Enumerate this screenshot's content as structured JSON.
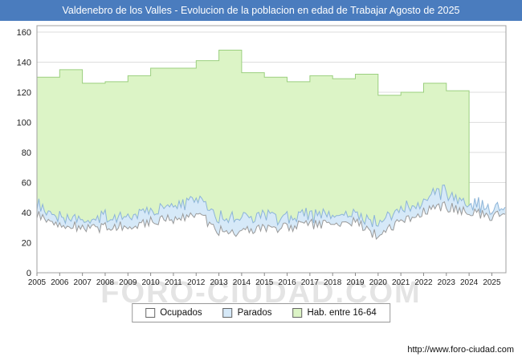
{
  "header": {
    "title": "Valdenebro de los Valles - Evolucion de la poblacion en edad de Trabajar Agosto de 2025",
    "bg_color": "#4a7cbe"
  },
  "footer": {
    "url": "http://www.foro-ciudad.com",
    "watermark": "FORO-CIUDAD.COM"
  },
  "chart_data": {
    "type": "area",
    "title": "Valdenebro de los Valles - Evolucion de la poblacion en edad de Trabajar Agosto de 2025",
    "xlabel": "",
    "ylabel": "",
    "ylim": [
      0,
      160
    ],
    "y_ticks": [
      0,
      20,
      40,
      60,
      80,
      100,
      120,
      140,
      160
    ],
    "x_tick_years": [
      2005,
      2006,
      2007,
      2008,
      2009,
      2010,
      2011,
      2012,
      2013,
      2014,
      2015,
      2016,
      2017,
      2018,
      2019,
      2020,
      2021,
      2022,
      2023,
      2024,
      2025
    ],
    "x_start": 2005,
    "x_end": 2025.62,
    "grid": "horizontal",
    "legend_position": "bottom",
    "series": [
      {
        "name": "Ocupados",
        "render": "monthly-area",
        "fill": "#ffffff",
        "stroke": "#9a9a9a",
        "years": [
          2005,
          2006,
          2007,
          2008,
          2009,
          2010,
          2011,
          2012,
          2013,
          2014,
          2015,
          2016,
          2017,
          2018,
          2019,
          2020,
          2021,
          2022,
          2023,
          2024,
          2025
        ],
        "yearly_values": [
          38,
          32,
          30,
          30,
          32,
          34,
          36,
          40,
          28,
          27,
          30,
          30,
          32,
          33,
          34,
          24,
          35,
          40,
          44,
          40,
          38
        ]
      },
      {
        "name": "Parados",
        "render": "monthly-area-stacked-on-ocupados",
        "fill": "#d6e9f8",
        "stroke": "#8cb4d8",
        "years": [
          2005,
          2006,
          2007,
          2008,
          2009,
          2010,
          2011,
          2012,
          2013,
          2014,
          2015,
          2016,
          2017,
          2018,
          2019,
          2020,
          2021,
          2022,
          2023,
          2024,
          2025
        ],
        "yearly_values": [
          6,
          6,
          5,
          6,
          8,
          8,
          9,
          10,
          10,
          9,
          8,
          7,
          6,
          6,
          5,
          8,
          8,
          8,
          10,
          6,
          5
        ]
      },
      {
        "name": "Hab. entre 16-64",
        "render": "annual-step-area",
        "fill": "#dcf4c6",
        "stroke": "#9bcf7f",
        "years": [
          2005,
          2006,
          2007,
          2008,
          2009,
          2010,
          2011,
          2012,
          2013,
          2014,
          2015,
          2016,
          2017,
          2018,
          2019,
          2020,
          2021,
          2022,
          2023
        ],
        "values": [
          130,
          135,
          126,
          127,
          131,
          136,
          136,
          141,
          148,
          133,
          130,
          127,
          131,
          129,
          132,
          118,
          120,
          126,
          121
        ],
        "end_x": 2024.0
      }
    ]
  }
}
